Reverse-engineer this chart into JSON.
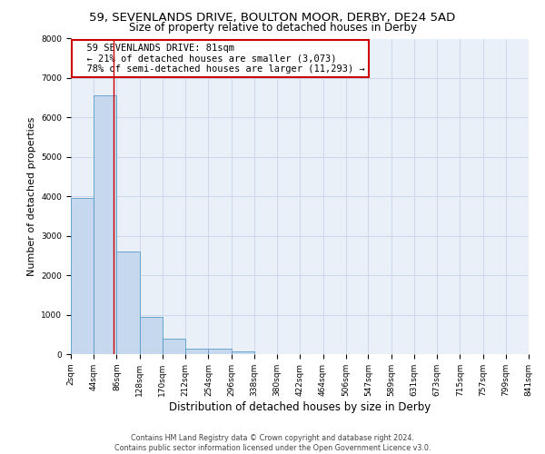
{
  "title": "59, SEVENLANDS DRIVE, BOULTON MOOR, DERBY, DE24 5AD",
  "subtitle": "Size of property relative to detached houses in Derby",
  "xlabel": "Distribution of detached houses by size in Derby",
  "ylabel": "Number of detached properties",
  "footer_line1": "Contains HM Land Registry data © Crown copyright and database right 2024.",
  "footer_line2": "Contains public sector information licensed under the Open Government Licence v3.0.",
  "annotation_title": "59 SEVENLANDS DRIVE: 81sqm",
  "annotation_line1": "← 21% of detached houses are smaller (3,073)",
  "annotation_line2": "78% of semi-detached houses are larger (11,293) →",
  "property_size": 81,
  "bin_edges": [
    2,
    44,
    86,
    128,
    170,
    212,
    254,
    296,
    338,
    380,
    422,
    464,
    506,
    547,
    589,
    631,
    673,
    715,
    757,
    799,
    841
  ],
  "bar_heights": [
    3950,
    6550,
    2600,
    950,
    400,
    130,
    130,
    80,
    0,
    0,
    0,
    0,
    0,
    0,
    0,
    0,
    0,
    0,
    0,
    0
  ],
  "bar_color": "#c5d8ed",
  "bar_edge_color": "#5a9ac8",
  "grid_color": "#c8d4e8",
  "background_color": "#eaf0f8",
  "annotation_box_color": "#ffffff",
  "annotation_box_edge_color": "#cc0000",
  "vline_color": "#cc0000",
  "ylim": [
    0,
    8000
  ],
  "yticks": [
    0,
    1000,
    2000,
    3000,
    4000,
    5000,
    6000,
    7000,
    8000
  ],
  "title_fontsize": 9.5,
  "subtitle_fontsize": 8.5,
  "tick_label_fontsize": 6.5,
  "ylabel_fontsize": 8,
  "xlabel_fontsize": 8.5,
  "annotation_fontsize": 7.5
}
